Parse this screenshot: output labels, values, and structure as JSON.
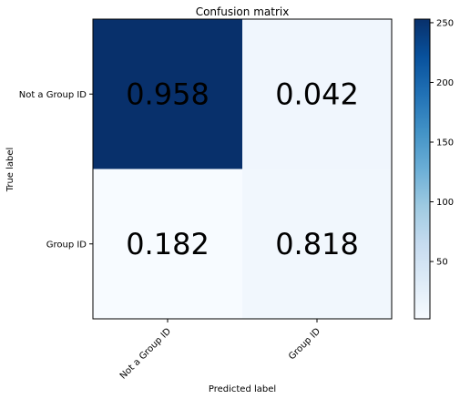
{
  "chart_data": {
    "type": "heatmap",
    "title": "Confusion matrix",
    "xlabel": "Predicted label",
    "ylabel": "True label",
    "x_categories": [
      "Not a Group ID",
      "Group ID"
    ],
    "y_categories": [
      "Not a Group ID",
      "Group ID"
    ],
    "cell_labels": [
      [
        "0.958",
        "0.042"
      ],
      [
        "0.182",
        "0.818"
      ]
    ],
    "counts": [
      [
        253,
        11
      ],
      [
        2,
        9
      ]
    ],
    "colormap": "Blues",
    "colorbar": {
      "min": 2,
      "max": 253,
      "ticks": [
        50,
        100,
        150,
        200,
        250
      ]
    },
    "colors": {
      "low": "#f7fbff",
      "high": "#08306b"
    }
  }
}
